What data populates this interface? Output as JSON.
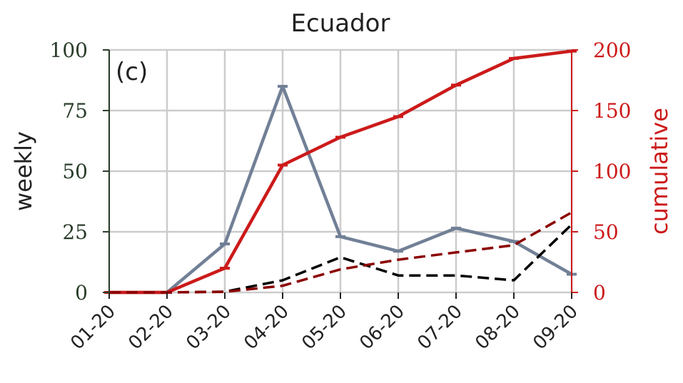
{
  "chart_data": {
    "type": "line",
    "title": "Ecuador",
    "panel_label": "(c)",
    "categories": [
      "01-20",
      "02-20",
      "03-20",
      "04-20",
      "05-20",
      "06-20",
      "07-20",
      "08-20",
      "09-20"
    ],
    "y_left": {
      "label": "weekly",
      "range": [
        0,
        100
      ],
      "ticks": [
        "0",
        "25",
        "50",
        "75",
        "100"
      ],
      "color": "#2b3d2b"
    },
    "y_right": {
      "label": "cumulative",
      "range": [
        0,
        200
      ],
      "ticks": [
        "0",
        "50",
        "100",
        "150",
        "200"
      ],
      "color": "#cc1a1a"
    },
    "grid": true,
    "series": [
      {
        "axis": "left",
        "style": "solid",
        "marker": "tick",
        "color": "#718096",
        "values": [
          0,
          0,
          20,
          85,
          23,
          17,
          26.5,
          21,
          7.5
        ]
      },
      {
        "axis": "left",
        "style": "dashed",
        "color": "#000000",
        "values": [
          0,
          0,
          0.3,
          5,
          14.5,
          7,
          7,
          5,
          28
        ]
      },
      {
        "axis": "right",
        "style": "solid",
        "marker": "tick",
        "color": "#cc1a1a",
        "values": [
          0,
          0,
          20,
          105,
          128,
          145,
          171,
          193,
          199
        ]
      },
      {
        "axis": "right",
        "style": "dashed",
        "color": "#8b0000",
        "values": [
          0,
          0,
          0.5,
          5.5,
          19,
          27,
          33,
          39,
          66
        ]
      }
    ]
  }
}
